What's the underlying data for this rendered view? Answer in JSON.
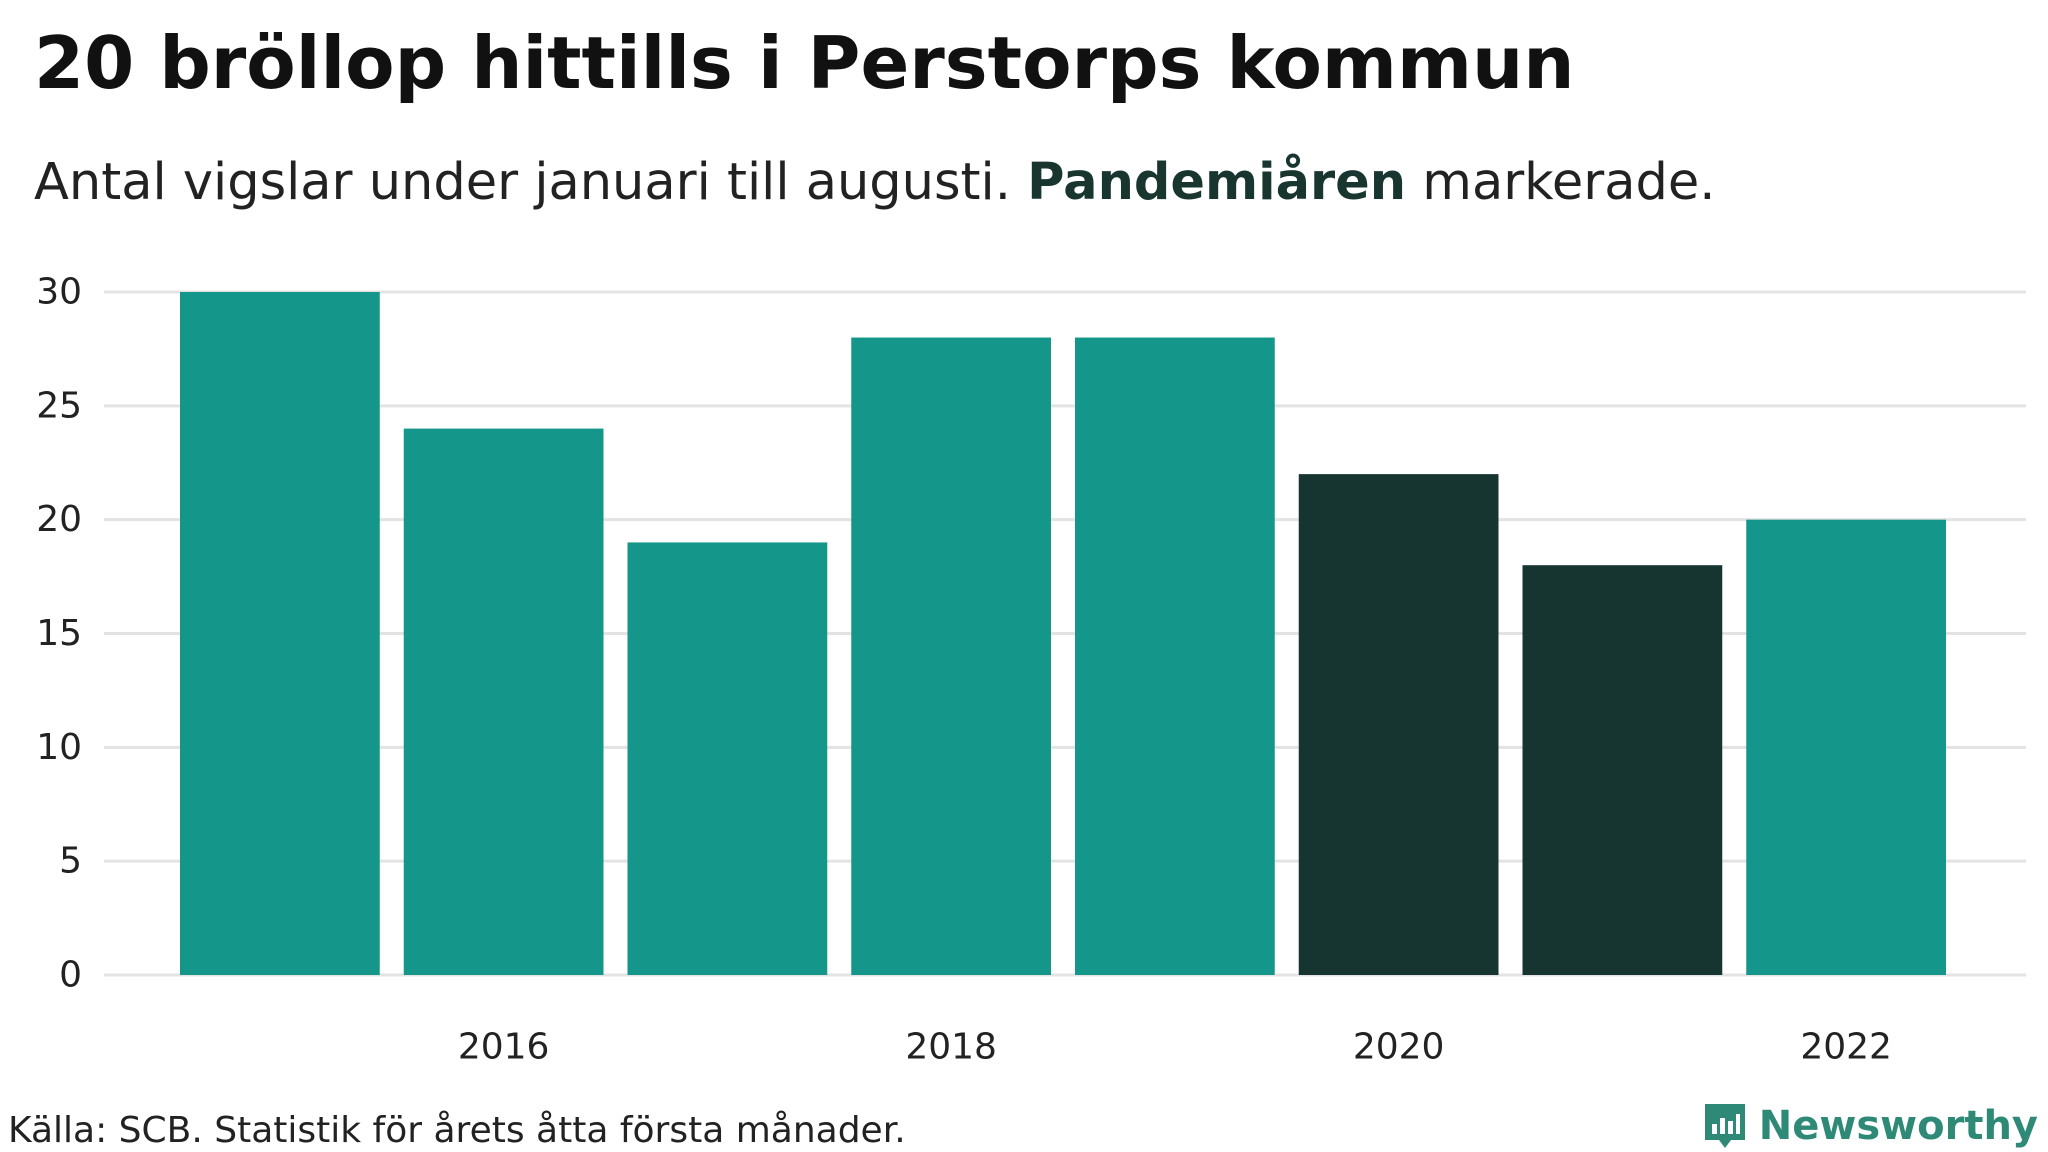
{
  "header": {
    "title": "20 bröllop hittills i Perstorps kommun",
    "subtitle_before": "Antal vigslar under januari till augusti. ",
    "subtitle_highlight": "Pandemiåren",
    "subtitle_after": " markerade."
  },
  "footer": {
    "source": "Källa: SCB. Statistik för årets åtta första månader.",
    "logo_text": "Newsworthy",
    "logo_icon": "bar-chart-speech-bubble-icon"
  },
  "colors": {
    "bar_default": "#14968a",
    "bar_highlight": "#173530",
    "grid": "#e3e3e3",
    "logo": "#2e8a76"
  },
  "chart_data": {
    "type": "bar",
    "title": "20 bröllop hittills i Perstorps kommun",
    "subtitle": "Antal vigslar under januari till augusti. Pandemiåren markerade.",
    "xlabel": "",
    "ylabel": "",
    "categories": [
      "2015",
      "2016",
      "2017",
      "2018",
      "2019",
      "2020",
      "2021",
      "2022"
    ],
    "values": [
      30,
      24,
      19,
      28,
      28,
      22,
      18,
      20
    ],
    "highlighted": [
      "2020",
      "2021"
    ],
    "x_tick_labels": [
      "2016",
      "2018",
      "2020",
      "2022"
    ],
    "y_ticks": [
      0,
      5,
      10,
      15,
      20,
      25,
      30
    ],
    "ylim": [
      0,
      30
    ],
    "grid": true,
    "legend": "none"
  }
}
